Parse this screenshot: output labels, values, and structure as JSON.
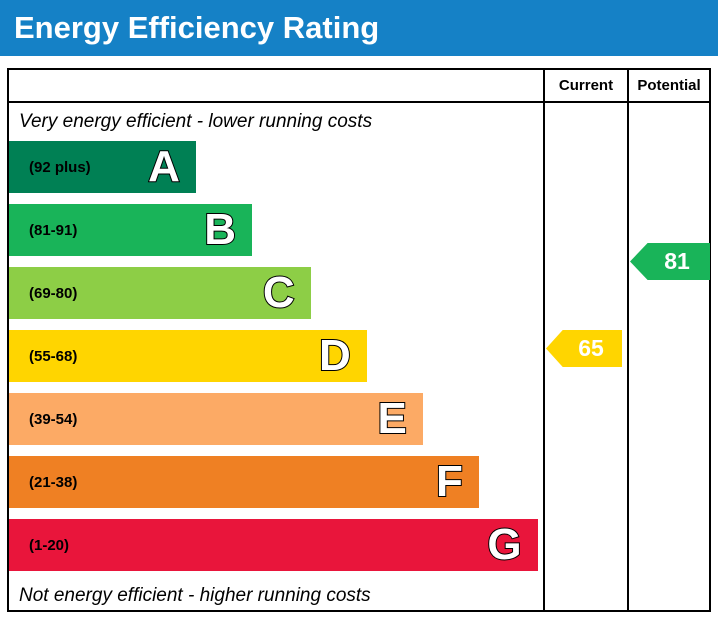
{
  "title": "Energy Efficiency Rating",
  "colors": {
    "title_bg": "#1581c6",
    "border": "#000000",
    "text": "#000000"
  },
  "columns": {
    "current": "Current",
    "potential": "Potential"
  },
  "notes": {
    "top": "Very energy efficient - lower running costs",
    "bottom": "Not energy efficient - higher running costs"
  },
  "chart_data": {
    "type": "bar",
    "title": "Energy Efficiency Rating",
    "orientation": "horizontal",
    "bands": [
      {
        "letter": "A",
        "range": "(92 plus)",
        "color": "#008054",
        "width_pct": 35
      },
      {
        "letter": "B",
        "range": "(81-91)",
        "color": "#19b459",
        "width_pct": 45.5
      },
      {
        "letter": "C",
        "range": "(69-80)",
        "color": "#8dce46",
        "width_pct": 56.5
      },
      {
        "letter": "D",
        "range": "(55-68)",
        "color": "#ffd500",
        "width_pct": 67
      },
      {
        "letter": "E",
        "range": "(39-54)",
        "color": "#fcaa65",
        "width_pct": 77.5
      },
      {
        "letter": "F",
        "range": "(21-38)",
        "color": "#ef8023",
        "width_pct": 88
      },
      {
        "letter": "G",
        "range": "(1-20)",
        "color": "#e9153b",
        "width_pct": 99
      }
    ],
    "current": {
      "value": 65,
      "band": "D",
      "color": "#ffd500"
    },
    "potential": {
      "value": 81,
      "band": "B",
      "color": "#19b459"
    }
  }
}
